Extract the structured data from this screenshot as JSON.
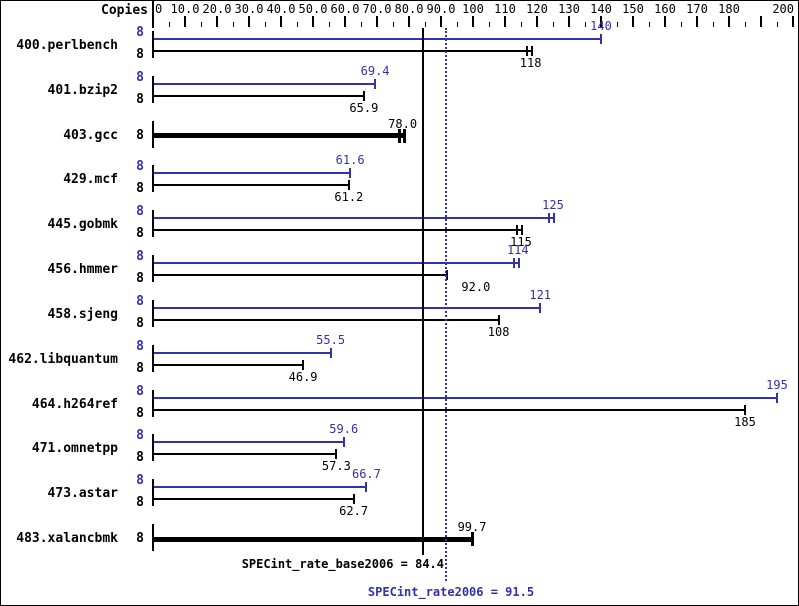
{
  "colors": {
    "peak_blue": "#3232aa",
    "base_black": "#000000",
    "background": "#ffffff",
    "border": "#000000"
  },
  "copies_header": "Copies",
  "chart_data": {
    "type": "bar",
    "orientation": "horizontal",
    "axis": {
      "min": 0,
      "max": 200,
      "major_tick_interval": 10,
      "minor_tick_interval": 5,
      "tick_labels": [
        {
          "value": 0,
          "text": "0"
        },
        {
          "value": 10,
          "text": "10.0"
        },
        {
          "value": 20,
          "text": "20.0"
        },
        {
          "value": 30,
          "text": "30.0"
        },
        {
          "value": 40,
          "text": "40.0"
        },
        {
          "value": 50,
          "text": "50.0"
        },
        {
          "value": 60,
          "text": "60.0"
        },
        {
          "value": 70,
          "text": "70.0"
        },
        {
          "value": 80,
          "text": "80.0"
        },
        {
          "value": 90,
          "text": "90.0"
        },
        {
          "value": 100,
          "text": "100"
        },
        {
          "value": 110,
          "text": "110"
        },
        {
          "value": 120,
          "text": "120"
        },
        {
          "value": 130,
          "text": "130"
        },
        {
          "value": 140,
          "text": "140"
        },
        {
          "value": 150,
          "text": "150"
        },
        {
          "value": 160,
          "text": "160"
        },
        {
          "value": 170,
          "text": "170"
        },
        {
          "value": 180,
          "text": "180"
        },
        {
          "value": 200,
          "text": "200"
        }
      ]
    },
    "benchmarks": [
      {
        "name": "400.perlbench",
        "bars": [
          {
            "series": "peak",
            "copies": "8",
            "value": 140,
            "label": "140",
            "end_marks": 1
          },
          {
            "series": "base",
            "copies": "8",
            "value": 118,
            "label": "118",
            "end_marks": 2
          }
        ]
      },
      {
        "name": "401.bzip2",
        "bars": [
          {
            "series": "peak",
            "copies": "8",
            "value": 69.4,
            "label": "69.4",
            "end_marks": 1
          },
          {
            "series": "base",
            "copies": "8",
            "value": 65.9,
            "label": "65.9",
            "end_marks": 1
          }
        ]
      },
      {
        "name": "403.gcc",
        "bars": [
          {
            "series": "merged",
            "copies": "8",
            "value": 78.0,
            "label": "78.0",
            "end_marks": 2
          }
        ]
      },
      {
        "name": "429.mcf",
        "bars": [
          {
            "series": "peak",
            "copies": "8",
            "value": 61.6,
            "label": "61.6",
            "end_marks": 1
          },
          {
            "series": "base",
            "copies": "8",
            "value": 61.2,
            "label": "61.2",
            "end_marks": 1
          }
        ]
      },
      {
        "name": "445.gobmk",
        "bars": [
          {
            "series": "peak",
            "copies": "8",
            "value": 125,
            "label": "125",
            "end_marks": 2
          },
          {
            "series": "base",
            "copies": "8",
            "value": 115,
            "label": "115",
            "end_marks": 2
          }
        ]
      },
      {
        "name": "456.hmmer",
        "bars": [
          {
            "series": "peak",
            "copies": "8",
            "value": 114,
            "label": "114",
            "end_marks": 2
          },
          {
            "series": "base",
            "copies": "8",
            "value": 92.0,
            "label": "92.0",
            "end_marks": 1,
            "label_dx": 14
          }
        ]
      },
      {
        "name": "458.sjeng",
        "bars": [
          {
            "series": "peak",
            "copies": "8",
            "value": 121,
            "label": "121",
            "end_marks": 1
          },
          {
            "series": "base",
            "copies": "8",
            "value": 108,
            "label": "108",
            "end_marks": 1
          }
        ]
      },
      {
        "name": "462.libquantum",
        "bars": [
          {
            "series": "peak",
            "copies": "8",
            "value": 55.5,
            "label": "55.5",
            "end_marks": 1
          },
          {
            "series": "base",
            "copies": "8",
            "value": 46.9,
            "label": "46.9",
            "end_marks": 1
          }
        ]
      },
      {
        "name": "464.h264ref",
        "bars": [
          {
            "series": "peak",
            "copies": "8",
            "value": 195,
            "label": "195",
            "end_marks": 1
          },
          {
            "series": "base",
            "copies": "8",
            "value": 185,
            "label": "185",
            "end_marks": 1
          }
        ]
      },
      {
        "name": "471.omnetpp",
        "bars": [
          {
            "series": "peak",
            "copies": "8",
            "value": 59.6,
            "label": "59.6",
            "end_marks": 1
          },
          {
            "series": "base",
            "copies": "8",
            "value": 57.3,
            "label": "57.3",
            "end_marks": 1
          }
        ]
      },
      {
        "name": "473.astar",
        "bars": [
          {
            "series": "peak",
            "copies": "8",
            "value": 66.7,
            "label": "66.7",
            "end_marks": 1
          },
          {
            "series": "base",
            "copies": "8",
            "value": 62.7,
            "label": "62.7",
            "end_marks": 1
          }
        ]
      },
      {
        "name": "483.xalancbmk",
        "bars": [
          {
            "series": "merged",
            "copies": "8",
            "value": 99.7,
            "label": "99.7",
            "end_marks": 1
          }
        ]
      }
    ],
    "reference_lines": [
      {
        "text": "SPECint_rate_base2006 = 84.4",
        "value": 84.4,
        "style": "solid",
        "color": "#000000"
      },
      {
        "text": "SPECint_rate2006 = 91.5",
        "value": 91.5,
        "style": "dotted",
        "color": "#3232aa"
      }
    ]
  }
}
